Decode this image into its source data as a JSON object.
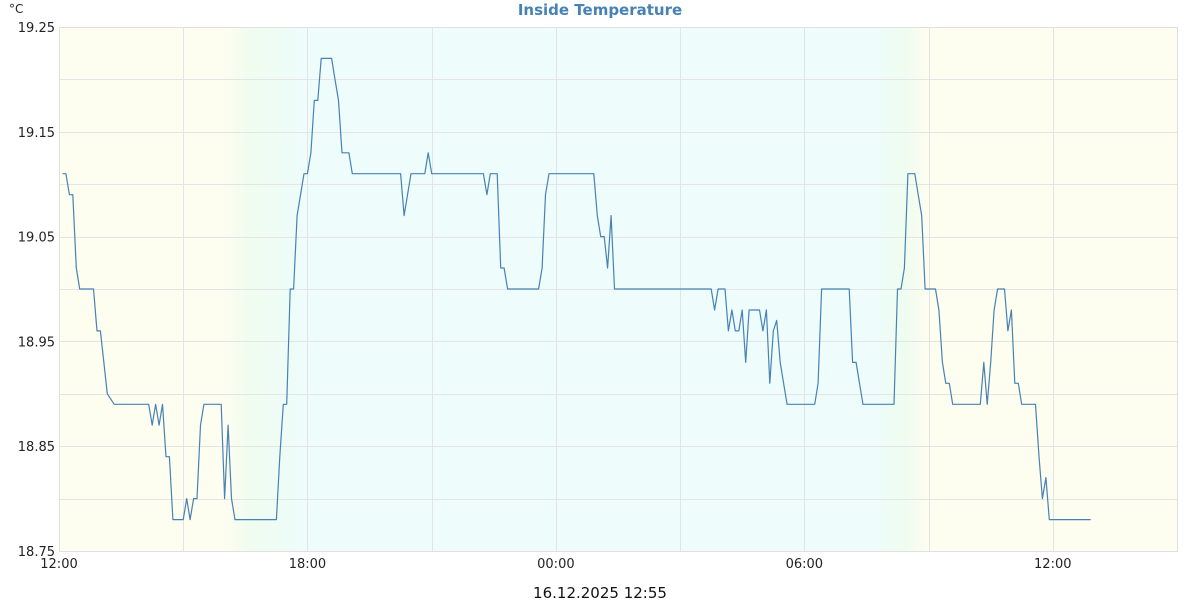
{
  "chart_data": {
    "type": "line",
    "title": "Inside Temperature",
    "y_unit": "°C",
    "timestamp": "16.12.2025 12:55",
    "ylim": [
      18.75,
      19.25
    ],
    "yticks": [
      {
        "value": 18.75,
        "label": "18.75"
      },
      {
        "value": 18.85,
        "label": "18.85"
      },
      {
        "value": 18.95,
        "label": "18.95"
      },
      {
        "value": 19.05,
        "label": "19.05"
      },
      {
        "value": 19.15,
        "label": "19.15"
      },
      {
        "value": 19.25,
        "label": "19.25"
      }
    ],
    "xlim": [
      "2025-12-15 12:00",
      "2025-12-16 15:00"
    ],
    "xticks": [
      {
        "value": "2025-12-15 12:00",
        "label": "12:00"
      },
      {
        "value": "2025-12-15 18:00",
        "label": "18:00"
      },
      {
        "value": "2025-12-16 00:00",
        "label": "00:00"
      },
      {
        "value": "2025-12-16 06:00",
        "label": "06:00"
      },
      {
        "value": "2025-12-16 12:00",
        "label": "12:00"
      }
    ],
    "x_gridlines": [
      "2025-12-15 12:00",
      "2025-12-15 15:00",
      "2025-12-15 18:00",
      "2025-12-15 21:00",
      "2025-12-16 00:00",
      "2025-12-16 03:00",
      "2025-12-16 06:00",
      "2025-12-16 09:00",
      "2025-12-16 12:00",
      "2025-12-16 15:00"
    ],
    "grid": true,
    "legend": "none",
    "colors": {
      "line": "#4682b4",
      "title": "#4682b4",
      "day_bg": "#fdfdf0",
      "night_bg": "#eefcfc",
      "twilight": "#effcf0",
      "grid": "#e4e4e4"
    },
    "background_bands": [
      {
        "start": "2025-12-15 12:00",
        "end": "2025-12-15 16:00",
        "kind": "day"
      },
      {
        "start": "2025-12-15 16:00",
        "end": "2025-12-15 18:00",
        "kind": "dusk"
      },
      {
        "start": "2025-12-15 18:00",
        "end": "2025-12-16 07:40",
        "kind": "night"
      },
      {
        "start": "2025-12-16 07:40",
        "end": "2025-12-16 09:00",
        "kind": "dawn"
      },
      {
        "start": "2025-12-16 09:00",
        "end": "2025-12-16 15:00",
        "kind": "day"
      }
    ],
    "series": [
      {
        "values": [
          [
            "2025-12-15 12:05",
            19.11
          ],
          [
            "2025-12-15 12:10",
            19.11
          ],
          [
            "2025-12-15 12:15",
            19.09
          ],
          [
            "2025-12-15 12:20",
            19.09
          ],
          [
            "2025-12-15 12:25",
            19.02
          ],
          [
            "2025-12-15 12:30",
            19.0
          ],
          [
            "2025-12-15 12:50",
            19.0
          ],
          [
            "2025-12-15 12:55",
            18.96
          ],
          [
            "2025-12-15 13:00",
            18.96
          ],
          [
            "2025-12-15 13:10",
            18.9
          ],
          [
            "2025-12-15 13:20",
            18.89
          ],
          [
            "2025-12-15 14:10",
            18.89
          ],
          [
            "2025-12-15 14:15",
            18.87
          ],
          [
            "2025-12-15 14:20",
            18.89
          ],
          [
            "2025-12-15 14:25",
            18.87
          ],
          [
            "2025-12-15 14:30",
            18.89
          ],
          [
            "2025-12-15 14:35",
            18.84
          ],
          [
            "2025-12-15 14:40",
            18.84
          ],
          [
            "2025-12-15 14:45",
            18.78
          ],
          [
            "2025-12-15 15:00",
            18.78
          ],
          [
            "2025-12-15 15:05",
            18.8
          ],
          [
            "2025-12-15 15:10",
            18.78
          ],
          [
            "2025-12-15 15:15",
            18.8
          ],
          [
            "2025-12-15 15:20",
            18.8
          ],
          [
            "2025-12-15 15:25",
            18.87
          ],
          [
            "2025-12-15 15:30",
            18.89
          ],
          [
            "2025-12-15 15:55",
            18.89
          ],
          [
            "2025-12-15 16:00",
            18.8
          ],
          [
            "2025-12-15 16:05",
            18.87
          ],
          [
            "2025-12-15 16:10",
            18.8
          ],
          [
            "2025-12-15 16:15",
            18.78
          ],
          [
            "2025-12-15 17:15",
            18.78
          ],
          [
            "2025-12-15 17:20",
            18.84
          ],
          [
            "2025-12-15 17:25",
            18.89
          ],
          [
            "2025-12-15 17:30",
            18.89
          ],
          [
            "2025-12-15 17:35",
            19.0
          ],
          [
            "2025-12-15 17:40",
            19.0
          ],
          [
            "2025-12-15 17:45",
            19.07
          ],
          [
            "2025-12-15 17:55",
            19.11
          ],
          [
            "2025-12-15 18:00",
            19.11
          ],
          [
            "2025-12-15 18:05",
            19.13
          ],
          [
            "2025-12-15 18:10",
            19.18
          ],
          [
            "2025-12-15 18:15",
            19.18
          ],
          [
            "2025-12-15 18:20",
            19.22
          ],
          [
            "2025-12-15 18:35",
            19.22
          ],
          [
            "2025-12-15 18:40",
            19.2
          ],
          [
            "2025-12-15 18:45",
            19.18
          ],
          [
            "2025-12-15 18:50",
            19.13
          ],
          [
            "2025-12-15 19:00",
            19.13
          ],
          [
            "2025-12-15 19:05",
            19.11
          ],
          [
            "2025-12-15 20:15",
            19.11
          ],
          [
            "2025-12-15 20:20",
            19.07
          ],
          [
            "2025-12-15 20:30",
            19.11
          ],
          [
            "2025-12-15 20:50",
            19.11
          ],
          [
            "2025-12-15 20:55",
            19.13
          ],
          [
            "2025-12-15 21:00",
            19.11
          ],
          [
            "2025-12-15 22:15",
            19.11
          ],
          [
            "2025-12-15 22:20",
            19.09
          ],
          [
            "2025-12-15 22:25",
            19.11
          ],
          [
            "2025-12-15 22:35",
            19.11
          ],
          [
            "2025-12-15 22:40",
            19.02
          ],
          [
            "2025-12-15 22:45",
            19.02
          ],
          [
            "2025-12-15 22:50",
            19.0
          ],
          [
            "2025-12-15 23:35",
            19.0
          ],
          [
            "2025-12-15 23:40",
            19.02
          ],
          [
            "2025-12-15 23:45",
            19.09
          ],
          [
            "2025-12-15 23:50",
            19.11
          ],
          [
            "2025-12-16 00:55",
            19.11
          ],
          [
            "2025-12-16 01:00",
            19.07
          ],
          [
            "2025-12-16 01:05",
            19.05
          ],
          [
            "2025-12-16 01:10",
            19.05
          ],
          [
            "2025-12-16 01:15",
            19.02
          ],
          [
            "2025-12-16 01:20",
            19.07
          ],
          [
            "2025-12-16 01:25",
            19.0
          ],
          [
            "2025-12-16 03:45",
            19.0
          ],
          [
            "2025-12-16 03:50",
            18.98
          ],
          [
            "2025-12-16 03:55",
            19.0
          ],
          [
            "2025-12-16 04:05",
            19.0
          ],
          [
            "2025-12-16 04:10",
            18.96
          ],
          [
            "2025-12-16 04:15",
            18.98
          ],
          [
            "2025-12-16 04:20",
            18.96
          ],
          [
            "2025-12-16 04:25",
            18.96
          ],
          [
            "2025-12-16 04:30",
            18.98
          ],
          [
            "2025-12-16 04:35",
            18.93
          ],
          [
            "2025-12-16 04:40",
            18.98
          ],
          [
            "2025-12-16 04:55",
            18.98
          ],
          [
            "2025-12-16 05:00",
            18.96
          ],
          [
            "2025-12-16 05:05",
            18.98
          ],
          [
            "2025-12-16 05:10",
            18.91
          ],
          [
            "2025-12-16 05:15",
            18.96
          ],
          [
            "2025-12-16 05:20",
            18.97
          ],
          [
            "2025-12-16 05:25",
            18.93
          ],
          [
            "2025-12-16 05:30",
            18.91
          ],
          [
            "2025-12-16 05:35",
            18.89
          ],
          [
            "2025-12-16 06:15",
            18.89
          ],
          [
            "2025-12-16 06:20",
            18.91
          ],
          [
            "2025-12-16 06:25",
            19.0
          ],
          [
            "2025-12-16 07:05",
            19.0
          ],
          [
            "2025-12-16 07:10",
            18.93
          ],
          [
            "2025-12-16 07:15",
            18.93
          ],
          [
            "2025-12-16 07:20",
            18.91
          ],
          [
            "2025-12-16 07:25",
            18.89
          ],
          [
            "2025-12-16 08:10",
            18.89
          ],
          [
            "2025-12-16 08:15",
            19.0
          ],
          [
            "2025-12-16 08:20",
            19.0
          ],
          [
            "2025-12-16 08:25",
            19.02
          ],
          [
            "2025-12-16 08:30",
            19.11
          ],
          [
            "2025-12-16 08:40",
            19.11
          ],
          [
            "2025-12-16 08:45",
            19.09
          ],
          [
            "2025-12-16 08:50",
            19.07
          ],
          [
            "2025-12-16 08:55",
            19.0
          ],
          [
            "2025-12-16 09:10",
            19.0
          ],
          [
            "2025-12-16 09:15",
            18.98
          ],
          [
            "2025-12-16 09:20",
            18.93
          ],
          [
            "2025-12-16 09:25",
            18.91
          ],
          [
            "2025-12-16 09:30",
            18.91
          ],
          [
            "2025-12-16 09:35",
            18.89
          ],
          [
            "2025-12-16 10:15",
            18.89
          ],
          [
            "2025-12-16 10:20",
            18.93
          ],
          [
            "2025-12-16 10:25",
            18.89
          ],
          [
            "2025-12-16 10:30",
            18.93
          ],
          [
            "2025-12-16 10:35",
            18.98
          ],
          [
            "2025-12-16 10:40",
            19.0
          ],
          [
            "2025-12-16 10:50",
            19.0
          ],
          [
            "2025-12-16 10:55",
            18.96
          ],
          [
            "2025-12-16 11:00",
            18.98
          ],
          [
            "2025-12-16 11:05",
            18.91
          ],
          [
            "2025-12-16 11:10",
            18.91
          ],
          [
            "2025-12-16 11:15",
            18.89
          ],
          [
            "2025-12-16 11:35",
            18.89
          ],
          [
            "2025-12-16 11:40",
            18.84
          ],
          [
            "2025-12-16 11:45",
            18.8
          ],
          [
            "2025-12-16 11:50",
            18.82
          ],
          [
            "2025-12-16 11:55",
            18.78
          ],
          [
            "2025-12-16 12:55",
            18.78
          ]
        ]
      }
    ]
  }
}
